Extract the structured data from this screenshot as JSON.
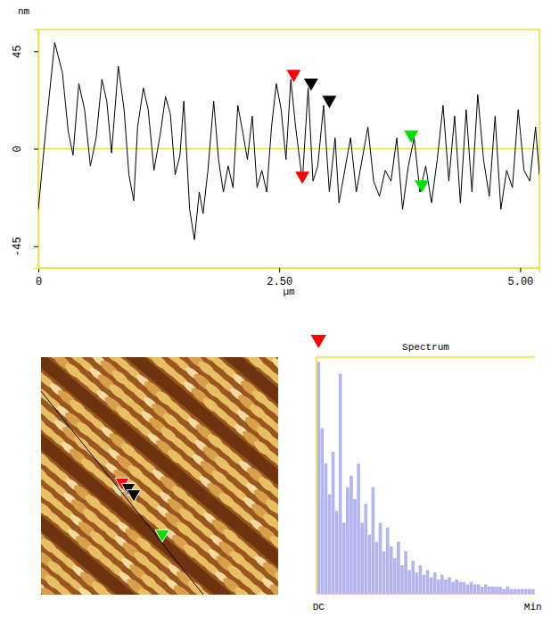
{
  "chart_data": [
    {
      "type": "line",
      "x_label": "µm",
      "y_label": "nm",
      "color": "#000000",
      "xlim": [
        0,
        5.2
      ],
      "ylim": [
        -55,
        55
      ],
      "xticks": [
        0,
        {
          "value": 2.5,
          "label": "2.50"
        },
        {
          "value": 5,
          "label": "5.00"
        }
      ],
      "yticks": [
        -45,
        0,
        45
      ],
      "x": [
        0.0,
        0.08,
        0.17,
        0.25,
        0.31,
        0.36,
        0.42,
        0.48,
        0.54,
        0.6,
        0.66,
        0.71,
        0.76,
        0.83,
        0.89,
        0.94,
        0.99,
        1.03,
        1.09,
        1.14,
        1.2,
        1.27,
        1.32,
        1.37,
        1.42,
        1.47,
        1.51,
        1.57,
        1.62,
        1.67,
        1.71,
        1.76,
        1.82,
        1.87,
        1.92,
        1.97,
        2.02,
        2.07,
        2.12,
        2.17,
        2.22,
        2.27,
        2.32,
        2.37,
        2.42,
        2.47,
        2.52,
        2.57,
        2.62,
        2.67,
        2.74,
        2.8,
        2.85,
        2.9,
        2.96,
        3.02,
        3.08,
        3.12,
        3.18,
        3.24,
        3.3,
        3.36,
        3.42,
        3.48,
        3.54,
        3.6,
        3.66,
        3.72,
        3.78,
        3.84,
        3.9,
        3.96,
        4.02,
        4.08,
        4.14,
        4.2,
        4.26,
        4.32,
        4.38,
        4.44,
        4.5,
        4.56,
        4.62,
        4.68,
        4.74,
        4.8,
        4.86,
        4.92,
        4.98,
        5.04,
        5.1,
        5.16,
        5.2
      ],
      "values": [
        -28,
        10,
        49,
        35,
        8,
        -3,
        30,
        18,
        -8,
        5,
        32,
        22,
        -2,
        38,
        18,
        -12,
        -24,
        10,
        28,
        18,
        -10,
        8,
        24,
        16,
        -12,
        -3,
        22,
        -28,
        -42,
        -20,
        -30,
        -10,
        22,
        -5,
        -20,
        -8,
        -18,
        20,
        8,
        -5,
        15,
        -18,
        -10,
        -20,
        10,
        30,
        18,
        -5,
        32,
        10,
        -15,
        28,
        -15,
        -8,
        20,
        -20,
        5,
        -25,
        -10,
        5,
        -20,
        -5,
        10,
        -15,
        -22,
        -10,
        -15,
        5,
        -28,
        -8,
        5,
        -20,
        -8,
        -25,
        -5,
        20,
        -15,
        15,
        -25,
        18,
        -20,
        25,
        -5,
        -22,
        15,
        -28,
        -10,
        -18,
        18,
        -10,
        -15,
        10,
        -12
      ],
      "cursors": [
        {
          "x": 2.65,
          "y": 32,
          "color": "#ff0000"
        },
        {
          "x": 2.74,
          "y": -15,
          "color": "#ff0000"
        },
        {
          "x": 2.83,
          "y": 28,
          "color": "#000000"
        },
        {
          "x": 3.02,
          "y": 20,
          "color": "#000000"
        },
        {
          "x": 3.87,
          "y": 4,
          "color": "#00dd00"
        },
        {
          "x": 3.98,
          "y": -19,
          "color": "#00dd00"
        }
      ]
    },
    {
      "type": "bar",
      "title": "Spectrum",
      "color": "#b4b4f0",
      "ylim": [
        0,
        1
      ],
      "tick_labels": "x",
      "categories": [
        "DC",
        null,
        null,
        null,
        null,
        null,
        null,
        null,
        null,
        null,
        null,
        null,
        null,
        null,
        null,
        null,
        null,
        null,
        null,
        null,
        null,
        null,
        null,
        null,
        null,
        null,
        null,
        null,
        null,
        null,
        null,
        null,
        null,
        null,
        null,
        null,
        null,
        null,
        null,
        null,
        null,
        null,
        null,
        null,
        null,
        null,
        null,
        null,
        null,
        null,
        null,
        null,
        null,
        null,
        null,
        null,
        null,
        null,
        null,
        "Min"
      ],
      "values": [
        0.98,
        0.7,
        0.55,
        0.42,
        0.6,
        0.35,
        0.93,
        0.3,
        0.45,
        0.5,
        0.4,
        0.55,
        0.3,
        0.38,
        0.25,
        0.45,
        0.22,
        0.3,
        0.18,
        0.28,
        0.2,
        0.15,
        0.22,
        0.12,
        0.18,
        0.1,
        0.14,
        0.09,
        0.12,
        0.08,
        0.1,
        0.07,
        0.09,
        0.06,
        0.08,
        0.06,
        0.07,
        0.05,
        0.06,
        0.05,
        0.05,
        0.04,
        0.05,
        0.04,
        0.04,
        0.03,
        0.04,
        0.03,
        0.03,
        0.03,
        0.03,
        0.02,
        0.03,
        0.02,
        0.02,
        0.02,
        0.02,
        0.02,
        0.02,
        0.02
      ]
    }
  ]
}
